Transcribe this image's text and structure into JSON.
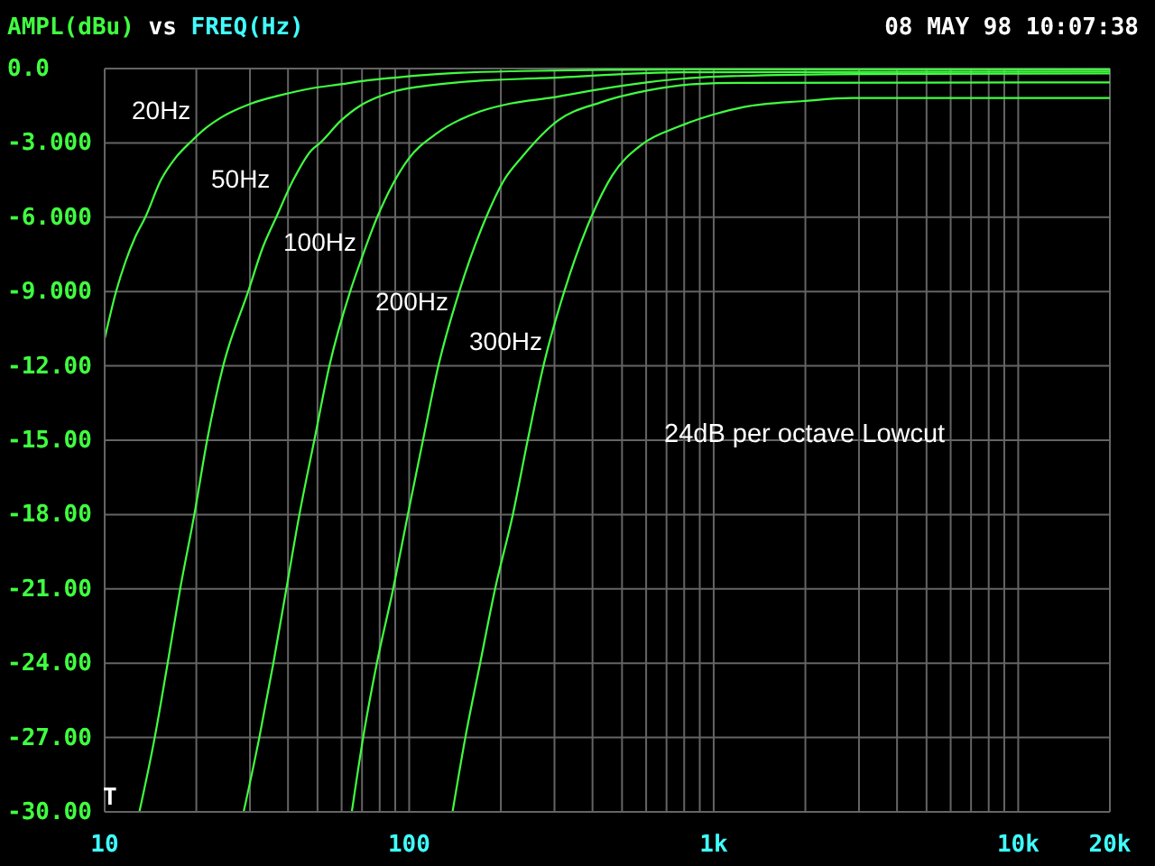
{
  "chart_data": {
    "type": "line",
    "title": "AMPL(dBu) vs FREQ(Hz)",
    "annotations": [
      "24dB per octave Lowcut",
      "08 MAY 98 10:07:38",
      "T"
    ],
    "log": "x",
    "grid": true,
    "marker": "none",
    "line_style": "solid",
    "xlim": [
      10,
      20000
    ],
    "xticks": [
      10,
      {
        "value": 20,
        "label": null
      },
      {
        "value": 30,
        "label": null
      },
      {
        "value": 40,
        "label": null
      },
      {
        "value": 50,
        "label": null
      },
      {
        "value": 60,
        "label": null
      },
      {
        "value": 70,
        "label": null
      },
      {
        "value": 80,
        "label": null
      },
      {
        "value": 90,
        "label": null
      },
      100,
      {
        "value": 200,
        "label": null
      },
      {
        "value": 300,
        "label": null
      },
      {
        "value": 400,
        "label": null
      },
      {
        "value": 500,
        "label": null
      },
      {
        "value": 600,
        "label": null
      },
      {
        "value": 700,
        "label": null
      },
      {
        "value": 800,
        "label": null
      },
      {
        "value": 900,
        "label": null
      },
      {
        "value": 1000,
        "label": "1k"
      },
      {
        "value": 2000,
        "label": null
      },
      {
        "value": 3000,
        "label": null
      },
      {
        "value": 4000,
        "label": null
      },
      {
        "value": 5000,
        "label": null
      },
      {
        "value": 6000,
        "label": null
      },
      {
        "value": 7000,
        "label": null
      },
      {
        "value": 8000,
        "label": null
      },
      {
        "value": 9000,
        "label": null
      },
      {
        "value": 10000,
        "label": "10k"
      },
      {
        "value": 20000,
        "label": "20k"
      }
    ],
    "ylim": [
      -30,
      0
    ],
    "yticks": [
      {
        "value": 0,
        "label": "0.0"
      },
      {
        "value": -3,
        "label": "-3.000"
      },
      {
        "value": -6,
        "label": "-6.000"
      },
      {
        "value": -9,
        "label": "-9.000"
      },
      {
        "value": -12,
        "label": "-12.00"
      },
      {
        "value": -15,
        "label": "-15.00"
      },
      {
        "value": -18,
        "label": "-18.00"
      },
      {
        "value": -21,
        "label": "-21.00"
      },
      {
        "value": -24,
        "label": "-24.00"
      },
      {
        "value": -27,
        "label": "-27.00"
      },
      {
        "value": -30,
        "label": "-30.00"
      }
    ],
    "series": [
      {
        "name": "20Hz",
        "color": "#40ff40",
        "x": [
          10,
          10.9,
          11.7,
          12.6,
          13.6,
          15.3,
          17.1,
          19.2,
          21.5,
          24.1,
          30.3,
          37.9,
          47.7,
          59.7,
          75,
          94.3,
          118,
          148,
          233,
          460,
          1000,
          20000
        ],
        "values": [
          -10.9,
          -9,
          -7.8,
          -6.8,
          -6,
          -4.5,
          -3.6,
          -2.95,
          -2.4,
          -1.98,
          -1.41,
          -1.07,
          -0.8,
          -0.63,
          -0.46,
          -0.34,
          -0.24,
          -0.17,
          -0.1,
          -0.05,
          -0.03,
          -0.03
        ]
      },
      {
        "name": "50Hz",
        "color": "#40ff40",
        "x": [
          13.0,
          14.6,
          16.1,
          17.7,
          19.7,
          21.7,
          24.5,
          29.6,
          33.1,
          36.6,
          41.6,
          47.7,
          51,
          59.7,
          69,
          79,
          90.6,
          108,
          171,
          270,
          800,
          20000
        ],
        "values": [
          -30,
          -27,
          -24,
          -21,
          -18,
          -15,
          -12,
          -9,
          -7.2,
          -6,
          -4.5,
          -3.3,
          -3,
          -2.1,
          -1.5,
          -1.15,
          -0.9,
          -0.73,
          -0.49,
          -0.39,
          -0.15,
          -0.12
        ]
      },
      {
        "name": "100Hz",
        "color": "#40ff40",
        "x": [
          28.6,
          32.2,
          35.8,
          39.5,
          43.6,
          48.8,
          54.7,
          64,
          69,
          78.5,
          99,
          124,
          171,
          215,
          295,
          424,
          610,
          800,
          1200,
          3000,
          20000
        ],
        "values": [
          -30,
          -27,
          -24,
          -21,
          -18,
          -15,
          -12,
          -9,
          -7.83,
          -6,
          -3.68,
          -2.59,
          -1.73,
          -1.41,
          -1.17,
          -0.83,
          -0.55,
          -0.4,
          -0.3,
          -0.22,
          -0.2
        ]
      },
      {
        "name": "200Hz",
        "color": "#40ff40",
        "x": [
          64.8,
          70.6,
          78.3,
          88.6,
          99,
          111,
          124.7,
          146,
          179,
          204,
          235,
          308,
          424,
          610,
          880,
          1200,
          20000
        ],
        "values": [
          -30,
          -27,
          -24,
          -21,
          -18,
          -15,
          -12,
          -9,
          -6,
          -4.54,
          -3.56,
          -2.1,
          -1.37,
          -0.88,
          -0.62,
          -0.58,
          -0.56
        ]
      },
      {
        "name": "300Hz",
        "color": "#40ff40",
        "x": [
          138.8,
          152.9,
          171,
          191.5,
          219,
          245,
          276,
          323,
          396,
          465,
          580,
          768,
          1002,
          1255,
          1978,
          2842,
          20000
        ],
        "values": [
          -30,
          -27,
          -24,
          -21,
          -18,
          -15,
          -12,
          -9,
          -6,
          -4.3,
          -3.07,
          -2.34,
          -1.85,
          -1.55,
          -1.31,
          -1.19,
          -1.19
        ]
      }
    ]
  }
}
